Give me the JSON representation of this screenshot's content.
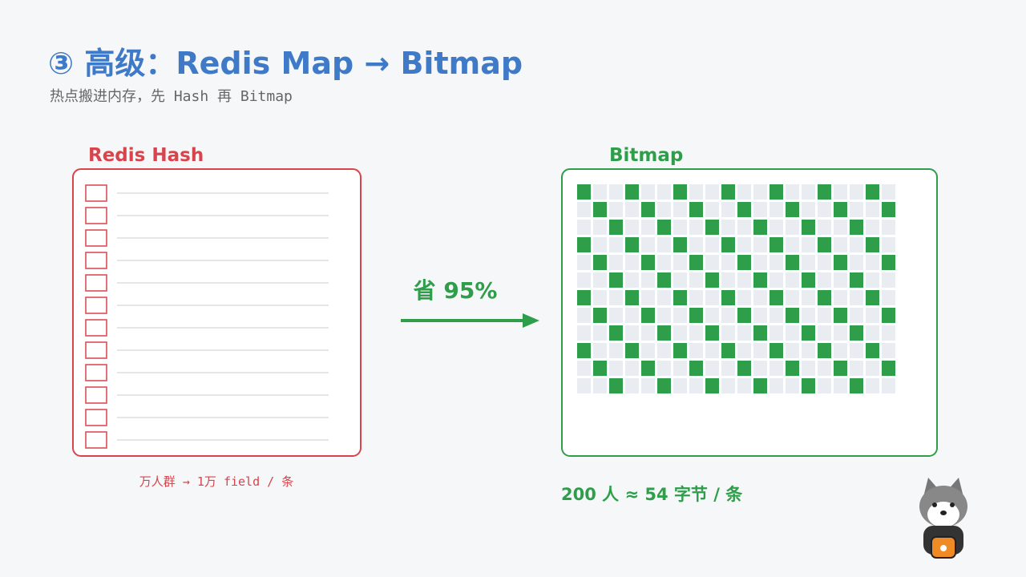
{
  "header": {
    "title": "③ 高级：Redis Map → Bitmap",
    "subtitle": "热点搬进内存，先 Hash 再 Bitmap"
  },
  "left": {
    "label": "Redis Hash",
    "caption": "万人群 → 1万 field / 条"
  },
  "arrow": {
    "label": "省 95%"
  },
  "right": {
    "label": "Bitmap",
    "caption": "200 人 ≈ 54 字节 / 条"
  }
}
